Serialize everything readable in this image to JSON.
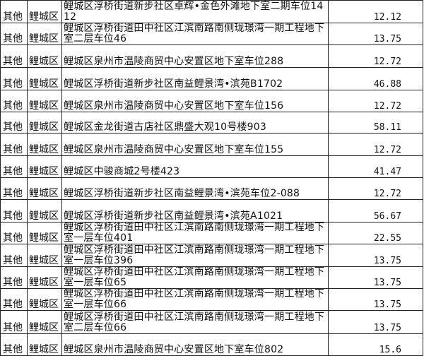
{
  "rows": [
    {
      "type": "其他",
      "district": "鲤城区",
      "address": "鲤城区浮桥街道新步社区卓辉•金色外滩地下室二期车位1412",
      "area": "12.12"
    },
    {
      "type": "其他",
      "district": "鲤城区",
      "address": "鲤城区浮桥街道田中社区江滨南路南侧珑璟湾一期工程地下室二层车位46",
      "area": "13.75"
    },
    {
      "type": "其他",
      "district": "鲤城区",
      "address": "鲤城区泉州市温陵商贸中心安置区地下室车位288",
      "area": "12.72"
    },
    {
      "type": "其他",
      "district": "鲤城区",
      "address": "鲤城区浮桥街道新步社区南益鲤景湾•滨苑B1702",
      "area": "46.88"
    },
    {
      "type": "其他",
      "district": "鲤城区",
      "address": "鲤城区泉州市温陵商贸中心安置区地下室车位156",
      "area": "12.72"
    },
    {
      "type": "其他",
      "district": "鲤城区",
      "address": "鲤城区金龙街道古店社区鼎盛大观10号楼903",
      "area": "58.11"
    },
    {
      "type": "其他",
      "district": "鲤城区",
      "address": "鲤城区泉州市温陵商贸中心安置区地下室车位155",
      "area": "12.72"
    },
    {
      "type": "其他",
      "district": "鲤城区",
      "address": "鲤城区中骏商城2号楼423",
      "area": "41.47"
    },
    {
      "type": "其他",
      "district": "鲤城区",
      "address": "鲤城区浮桥街道新步社区南益鲤景湾•滨苑车位2-088",
      "area": "12.72"
    },
    {
      "type": "其他",
      "district": "鲤城区",
      "address": "鲤城区浮桥街道新步社区南益鲤景湾•滨苑A1021",
      "area": "56.67"
    },
    {
      "type": "其他",
      "district": "鲤城区",
      "address": "鲤城区浮桥街道田中社区江滨南路南侧珑璟湾一期工程地下室一层车位401",
      "area": "22.55"
    },
    {
      "type": "其他",
      "district": "鲤城区",
      "address": "鲤城区浮桥街道田中社区江滨南路南侧珑璟湾一期工程地下室一层车位396",
      "area": "13.75"
    },
    {
      "type": "其他",
      "district": "鲤城区",
      "address": "鲤城区浮桥街道田中社区江滨南路南侧珑璟湾一期工程地下室一层车位65",
      "area": "13.75"
    },
    {
      "type": "其他",
      "district": "鲤城区",
      "address": "鲤城区浮桥街道田中社区江滨南路南侧珑璟湾一期工程地下室一层车位66",
      "area": "13.75"
    },
    {
      "type": "其他",
      "district": "鲤城区",
      "address": "鲤城区浮桥街道田中社区江滨南路南侧珑璟湾一期工程地下室二层车位66",
      "area": "13.75"
    },
    {
      "type": "其他",
      "district": "鲤城区",
      "address": "鲤城区泉州市温陵商贸中心安置区地下室车位802",
      "area": "15.6"
    }
  ]
}
